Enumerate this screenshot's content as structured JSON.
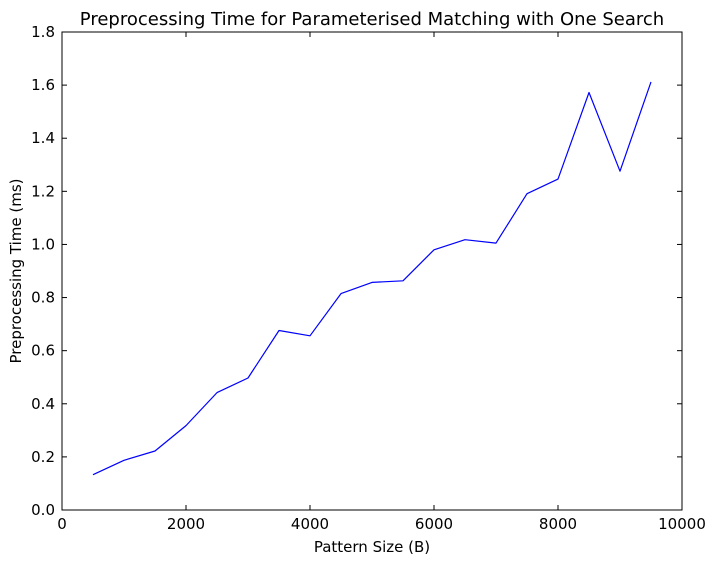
{
  "chart_data": {
    "type": "line",
    "title": "Preprocessing Time for Parameterised Matching with One Search",
    "xlabel": "Pattern Size (B)",
    "ylabel": "Preprocessing Time (ms)",
    "xlim": [
      0,
      10000
    ],
    "ylim": [
      0.0,
      1.8
    ],
    "x_ticks": [
      "0",
      "2000",
      "4000",
      "6000",
      "8000",
      "10000"
    ],
    "y_ticks": [
      "0.0",
      "0.2",
      "0.4",
      "0.6",
      "0.8",
      "1.0",
      "1.2",
      "1.4",
      "1.6",
      "1.8"
    ],
    "grid": false,
    "line_color": "#0000ff",
    "series": [
      {
        "x": [
          500,
          1000,
          1500,
          2000,
          2500,
          3000,
          3500,
          4000,
          4500,
          5000,
          5500,
          6000,
          6500,
          7000,
          7500,
          8000,
          8500,
          9000,
          9500
        ],
        "values": [
          0.133,
          0.187,
          0.222,
          0.318,
          0.442,
          0.497,
          0.676,
          0.656,
          0.815,
          0.857,
          0.863,
          0.98,
          1.018,
          1.005,
          1.191,
          1.246,
          1.572,
          1.276,
          1.612
        ]
      }
    ]
  }
}
